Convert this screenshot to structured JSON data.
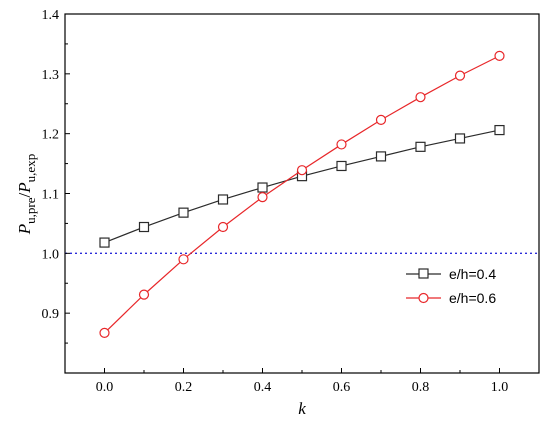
{
  "chart_data": {
    "type": "line",
    "xlabel": "k",
    "ylabel": "P_u,pre/P_u,exp",
    "ylabel_parts": {
      "p1": "P",
      "s1": "u,pre",
      "slash": "/",
      "p2": "P",
      "s2": "u,exp"
    },
    "xlim": [
      -0.1,
      1.1
    ],
    "ylim": [
      0.8,
      1.4
    ],
    "x_ticks": [
      "0.0",
      "0.2",
      "0.4",
      "0.6",
      "0.8",
      "1.0"
    ],
    "x_tick_values": [
      0.0,
      0.2,
      0.4,
      0.6,
      0.8,
      1.0
    ],
    "y_ticks": [
      "0.9",
      "1.0",
      "1.1",
      "1.2",
      "1.3",
      "1.4"
    ],
    "y_tick_values": [
      0.9,
      1.0,
      1.1,
      1.2,
      1.3,
      1.4
    ],
    "grid": false,
    "legend_position": "bottom-right",
    "x": [
      0.0,
      0.1,
      0.2,
      0.3,
      0.4,
      0.5,
      0.6,
      0.7,
      0.8,
      0.9,
      1.0
    ],
    "series": [
      {
        "name": "e/h=0.4",
        "color": "#2b2b2b",
        "marker": "square",
        "values": [
          1.018,
          1.044,
          1.068,
          1.09,
          1.11,
          1.129,
          1.146,
          1.162,
          1.178,
          1.192,
          1.206
        ]
      },
      {
        "name": "e/h=0.6",
        "color": "#e8272a",
        "marker": "circle",
        "values": [
          0.867,
          0.931,
          0.99,
          1.044,
          1.094,
          1.139,
          1.182,
          1.223,
          1.261,
          1.297,
          1.33
        ]
      }
    ],
    "reference_line": {
      "y": 1.0,
      "color": "#2b2bd9",
      "style": "dotted"
    }
  }
}
